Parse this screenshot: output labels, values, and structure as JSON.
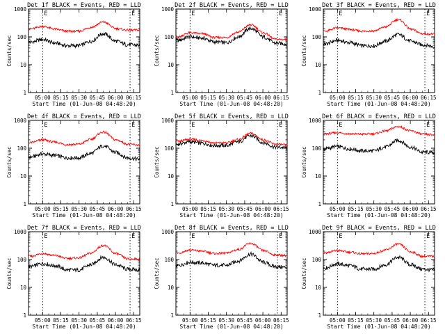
{
  "figure": {
    "xlabel": "Start Time (01-Jun-08 04:48:20)",
    "ylabel": "Counts/sec",
    "x_tick_labels": [
      "05:00",
      "05:15",
      "05:30",
      "05:45",
      "06:00",
      "06:15"
    ],
    "y_tick_labels": [
      "1",
      "10",
      "100",
      "1000"
    ],
    "marker_label": "E",
    "colors": {
      "events": "#000000",
      "lld": "#ff0000",
      "axes": "#000000"
    }
  },
  "chart_data": [
    {
      "type": "line",
      "title": "Det 1f BLACK = Events, RED = LLD",
      "x_hours": [
        4.806,
        6.333
      ],
      "ylim": [
        1,
        1000
      ],
      "yscale": "log",
      "x": [
        "04:50",
        "05:00",
        "05:10",
        "05:20",
        "05:30",
        "05:40",
        "05:50",
        "06:00",
        "06:10",
        "06:20"
      ],
      "series": [
        {
          "name": "Events",
          "values": [
            65,
            80,
            60,
            48,
            48,
            70,
            130,
            70,
            52,
            50
          ]
        },
        {
          "name": "LLD",
          "values": [
            190,
            240,
            190,
            160,
            160,
            220,
            340,
            200,
            175,
            175
          ]
        }
      ]
    },
    {
      "type": "line",
      "title": "Det 2f BLACK = Events, RED = LLD",
      "x_hours": [
        4.806,
        6.333
      ],
      "ylim": [
        1,
        1000
      ],
      "yscale": "log",
      "x": [
        "04:50",
        "05:00",
        "05:10",
        "05:20",
        "05:30",
        "05:40",
        "05:50",
        "06:00",
        "06:10",
        "06:20"
      ],
      "series": [
        {
          "name": "Events",
          "values": [
            75,
            100,
            90,
            65,
            62,
            100,
            200,
            100,
            60,
            55
          ]
        },
        {
          "name": "LLD",
          "values": [
            100,
            140,
            130,
            95,
            95,
            150,
            270,
            140,
            82,
            80
          ]
        }
      ]
    },
    {
      "type": "line",
      "title": "Det 3f BLACK = Events, RED = LLD",
      "x_hours": [
        4.806,
        6.333
      ],
      "ylim": [
        1,
        1000
      ],
      "yscale": "log",
      "x": [
        "04:50",
        "05:00",
        "05:10",
        "05:20",
        "05:30",
        "05:40",
        "05:50",
        "06:00",
        "06:10",
        "06:20"
      ],
      "series": [
        {
          "name": "Events",
          "values": [
            55,
            75,
            62,
            48,
            48,
            70,
            120,
            70,
            52,
            45
          ]
        },
        {
          "name": "LLD",
          "values": [
            160,
            210,
            185,
            160,
            165,
            230,
            420,
            190,
            130,
            125
          ]
        }
      ]
    },
    {
      "type": "line",
      "title": "Det 4f BLACK = Events, RED = LLD",
      "x_hours": [
        4.806,
        6.333
      ],
      "ylim": [
        1,
        1000
      ],
      "yscale": "log",
      "x": [
        "04:50",
        "05:00",
        "05:10",
        "05:20",
        "05:30",
        "05:40",
        "05:50",
        "06:00",
        "06:10",
        "06:20"
      ],
      "series": [
        {
          "name": "Events",
          "values": [
            48,
            62,
            55,
            45,
            45,
            65,
            120,
            70,
            45,
            40
          ]
        },
        {
          "name": "LLD",
          "values": [
            160,
            200,
            165,
            135,
            140,
            210,
            380,
            200,
            140,
            130
          ]
        }
      ]
    },
    {
      "type": "line",
      "title": "Det 5f BLACK = Events, RED = LLD",
      "x_hours": [
        4.806,
        6.333
      ],
      "ylim": [
        1,
        1000
      ],
      "yscale": "log",
      "x": [
        "04:50",
        "05:00",
        "05:10",
        "05:20",
        "05:30",
        "05:40",
        "05:50",
        "06:00",
        "06:10",
        "06:20"
      ],
      "series": [
        {
          "name": "Events",
          "values": [
            140,
            170,
            150,
            125,
            125,
            170,
            280,
            160,
            110,
            105
          ]
        },
        {
          "name": "LLD",
          "values": [
            175,
            210,
            190,
            155,
            155,
            205,
            340,
            200,
            140,
            130
          ]
        }
      ]
    },
    {
      "type": "line",
      "title": "Det 6f BLACK = Events, RED = LLD",
      "x_hours": [
        4.806,
        6.333
      ],
      "ylim": [
        1,
        1000
      ],
      "yscale": "log",
      "x": [
        "04:50",
        "05:00",
        "05:10",
        "05:20",
        "05:30",
        "05:40",
        "05:50",
        "06:00",
        "06:10",
        "06:20"
      ],
      "series": [
        {
          "name": "Events",
          "values": [
            95,
            115,
            95,
            80,
            80,
            110,
            190,
            110,
            72,
            70
          ]
        },
        {
          "name": "LLD",
          "values": [
            330,
            360,
            330,
            320,
            330,
            420,
            600,
            420,
            320,
            300
          ]
        }
      ]
    },
    {
      "type": "line",
      "title": "Det 7f BLACK = Events, RED = LLD",
      "x_hours": [
        4.806,
        6.333
      ],
      "ylim": [
        1,
        1000
      ],
      "yscale": "log",
      "x": [
        "04:50",
        "05:00",
        "05:10",
        "05:20",
        "05:30",
        "05:40",
        "05:50",
        "06:00",
        "06:10",
        "06:20"
      ],
      "series": [
        {
          "name": "Events",
          "values": [
            55,
            72,
            60,
            42,
            42,
            65,
            120,
            65,
            45,
            42
          ]
        },
        {
          "name": "LLD",
          "values": [
            130,
            165,
            140,
            110,
            115,
            170,
            320,
            165,
            105,
            105
          ]
        }
      ]
    },
    {
      "type": "line",
      "title": "Det 8f BLACK = Events, RED = LLD",
      "x_hours": [
        4.806,
        6.333
      ],
      "ylim": [
        1,
        1000
      ],
      "yscale": "log",
      "x": [
        "04:50",
        "05:00",
        "05:10",
        "05:20",
        "05:30",
        "05:40",
        "05:50",
        "06:00",
        "06:10",
        "06:20"
      ],
      "series": [
        {
          "name": "Events",
          "values": [
            60,
            80,
            75,
            62,
            62,
            90,
            155,
            80,
            55,
            52
          ]
        },
        {
          "name": "LLD",
          "values": [
            170,
            220,
            200,
            165,
            170,
            230,
            380,
            210,
            145,
            140
          ]
        }
      ]
    },
    {
      "type": "line",
      "title": "Det 9f BLACK = Events, RED = LLD",
      "x_hours": [
        4.806,
        6.333
      ],
      "ylim": [
        1,
        1000
      ],
      "yscale": "log",
      "x": [
        "04:50",
        "05:00",
        "05:10",
        "05:20",
        "05:30",
        "05:40",
        "05:50",
        "06:00",
        "06:10",
        "06:20"
      ],
      "series": [
        {
          "name": "Events",
          "values": [
            50,
            70,
            60,
            45,
            45,
            65,
            120,
            65,
            45,
            42
          ]
        },
        {
          "name": "LLD",
          "values": [
            175,
            210,
            185,
            160,
            165,
            220,
            360,
            190,
            130,
            130
          ]
        }
      ]
    }
  ]
}
